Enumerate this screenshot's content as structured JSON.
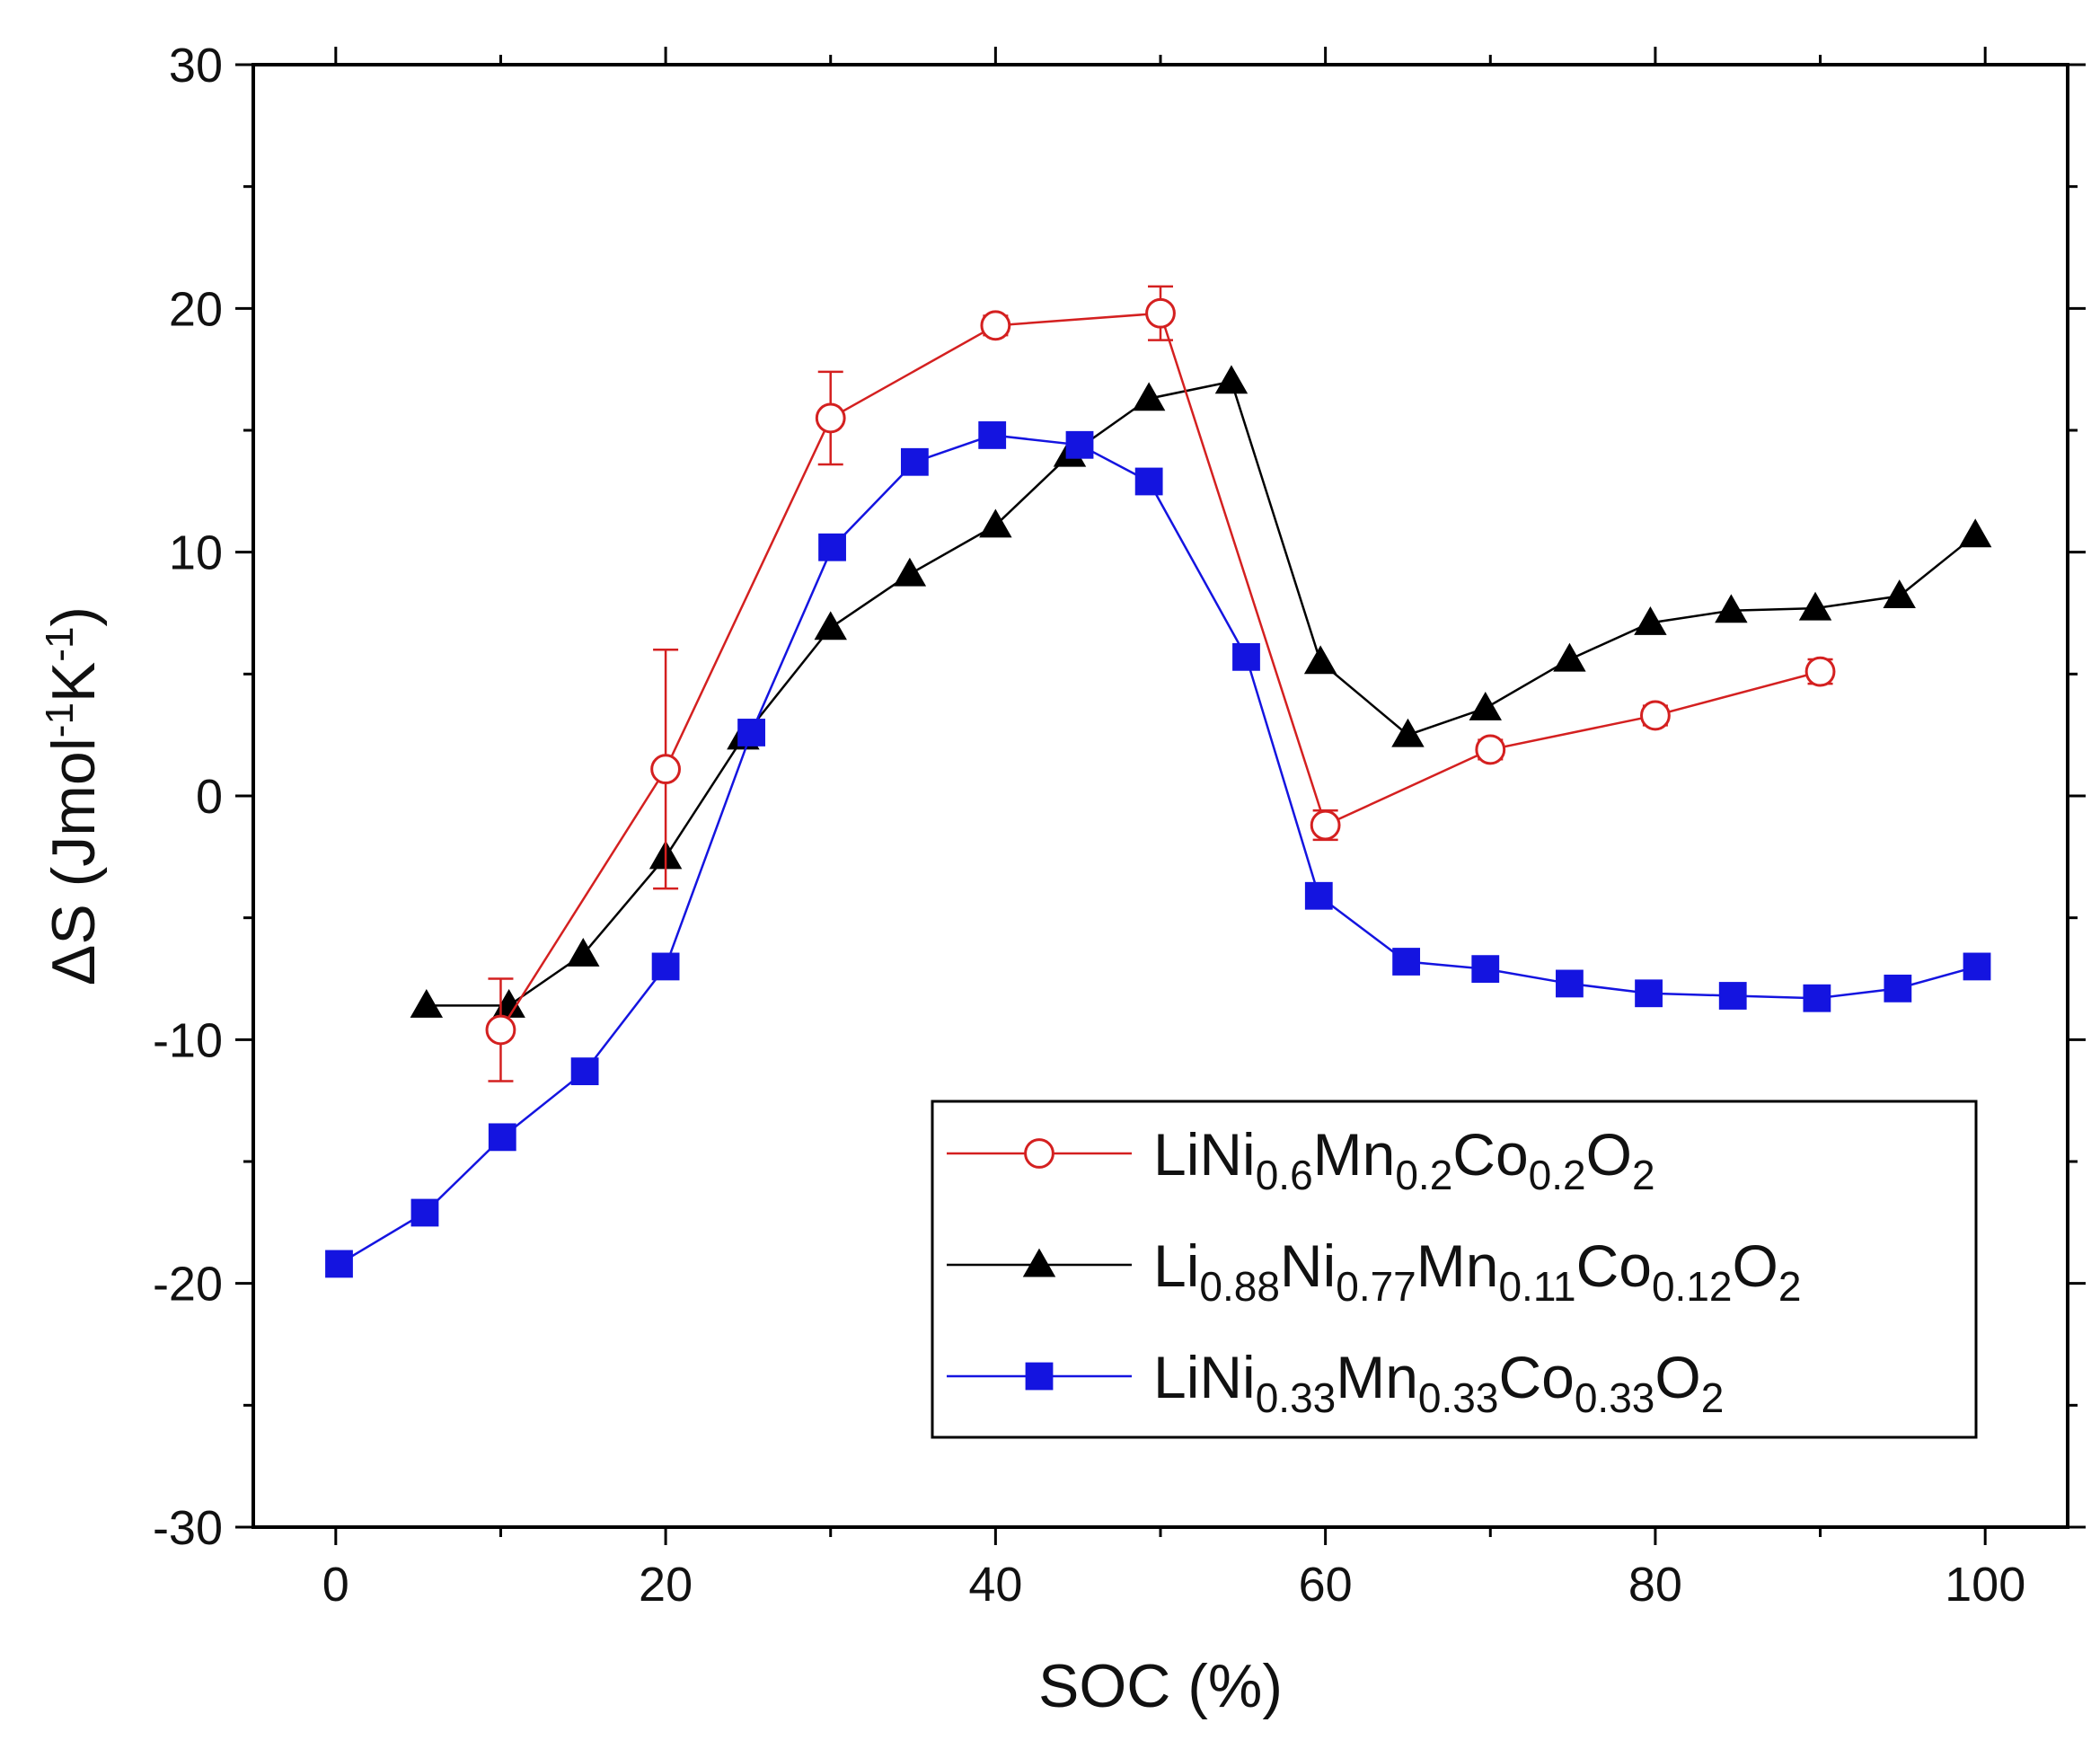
{
  "chart_data": {
    "type": "line",
    "title": "",
    "xlabel": "SOC (%)",
    "ylabel": {
      "base": "ΔS (Jmol",
      "sup1": "-1",
      "mid": "K",
      "sup2": "-1",
      "end": ")"
    },
    "xlim": [
      -5,
      105
    ],
    "ylim": [
      -30,
      30
    ],
    "x_ticks": [
      0,
      20,
      40,
      60,
      80,
      100
    ],
    "y_ticks": [
      -30,
      -20,
      -10,
      0,
      10,
      20,
      30
    ],
    "x_tick_labels": [
      "0",
      "20",
      "40",
      "60",
      "80",
      "100"
    ],
    "y_tick_labels": [
      "-30",
      "-20",
      "-10",
      "0",
      "10",
      "20",
      "30"
    ],
    "legend_position": "bottom-right",
    "series": [
      {
        "name": "LiNi0.6Mn0.2Co0.2O2",
        "legend_parts": [
          {
            "t": "LiNi",
            "sub": false
          },
          {
            "t": "0.6",
            "sub": true
          },
          {
            "t": "Mn",
            "sub": false
          },
          {
            "t": "0.2",
            "sub": true
          },
          {
            "t": "Co",
            "sub": false
          },
          {
            "t": "0.2",
            "sub": true
          },
          {
            "t": "O",
            "sub": false
          },
          {
            "t": "2",
            "sub": true
          }
        ],
        "color": "#d42020",
        "marker": "open-circle",
        "x": [
          10,
          20,
          30,
          40,
          50,
          60,
          70,
          80,
          90
        ],
        "y": [
          -9.6,
          1.1,
          15.5,
          19.3,
          19.8,
          -1.2,
          1.9,
          3.3,
          5.1
        ],
        "err": [
          2.1,
          4.9,
          1.9,
          0.4,
          1.1,
          0.6,
          0.4,
          0.4,
          0.5
        ]
      },
      {
        "name": "Li0.88Ni0.77Mn0.11Co0.12O2",
        "legend_parts": [
          {
            "t": "Li",
            "sub": false
          },
          {
            "t": "0.88",
            "sub": true
          },
          {
            "t": "Ni",
            "sub": false
          },
          {
            "t": "0.77",
            "sub": true
          },
          {
            "t": "Mn",
            "sub": false
          },
          {
            "t": "0.11",
            "sub": true
          },
          {
            "t": "Co",
            "sub": false
          },
          {
            "t": "0.12",
            "sub": true
          },
          {
            "t": "O",
            "sub": false
          },
          {
            "t": "2",
            "sub": true
          }
        ],
        "color": "#000000",
        "marker": "filled-triangle",
        "x": [
          5.5,
          10.5,
          15,
          20,
          24.7,
          30,
          34.8,
          40,
          44.5,
          49.3,
          54.3,
          59.7,
          65,
          69.7,
          74.8,
          79.7,
          84.6,
          89.7,
          94.8,
          99.4
        ],
        "y": [
          -8.6,
          -8.6,
          -6.5,
          -2.5,
          2.4,
          6.9,
          9.1,
          11.1,
          14.0,
          16.3,
          17.0,
          5.5,
          2.5,
          3.6,
          5.6,
          7.1,
          7.6,
          7.7,
          8.2,
          10.7
        ]
      },
      {
        "name": "LiNi0.33Mn0.33Co0.33O2",
        "legend_parts": [
          {
            "t": "LiNi",
            "sub": false
          },
          {
            "t": "0.33",
            "sub": true
          },
          {
            "t": "Mn",
            "sub": false
          },
          {
            "t": "0.33",
            "sub": true
          },
          {
            "t": "Co",
            "sub": false
          },
          {
            "t": "0.33",
            "sub": true
          },
          {
            "t": "O",
            "sub": false
          },
          {
            "t": "2",
            "sub": true
          }
        ],
        "color": "#1414e0",
        "marker": "filled-square",
        "x": [
          0.2,
          5.4,
          10.1,
          15.1,
          20,
          25.2,
          30.1,
          35.1,
          39.8,
          45.1,
          49.3,
          55.2,
          59.6,
          64.9,
          69.7,
          74.8,
          79.6,
          84.7,
          89.8,
          94.7,
          99.5
        ],
        "y": [
          -19.2,
          -17.1,
          -14.0,
          -11.3,
          -7.0,
          2.6,
          10.2,
          13.7,
          14.8,
          14.4,
          12.9,
          5.7,
          -4.1,
          -6.8,
          -7.1,
          -7.7,
          -8.1,
          -8.2,
          -8.3,
          -7.9,
          -7.0
        ]
      }
    ]
  }
}
